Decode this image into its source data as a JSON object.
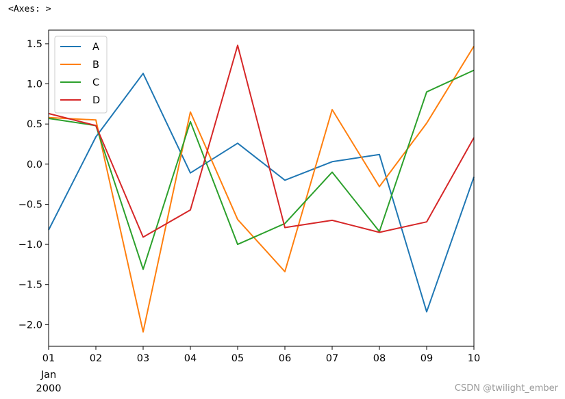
{
  "output_repr": "<Axes: >",
  "watermark": "CSDN @twilight_ember",
  "chart_data": {
    "type": "line",
    "x": [
      "01",
      "02",
      "03",
      "04",
      "05",
      "06",
      "07",
      "08",
      "09",
      "10"
    ],
    "x_sublabels": [
      "Jan",
      "2000"
    ],
    "ylim": [
      -2.27,
      1.67
    ],
    "yticks": [
      -2.0,
      -1.5,
      -1.0,
      -0.5,
      0.0,
      0.5,
      1.0,
      1.5
    ],
    "ytick_labels": [
      "−2.0",
      "−1.5",
      "−1.0",
      "−0.5",
      "0.0",
      "0.5",
      "1.0",
      "1.5"
    ],
    "grid": false,
    "legend_placement": "upper-left",
    "series": [
      {
        "name": "A",
        "color": "#1f77b4",
        "values": [
          -0.82,
          0.34,
          1.13,
          -0.11,
          0.26,
          -0.2,
          0.03,
          0.12,
          -1.84,
          -0.16
        ]
      },
      {
        "name": "B",
        "color": "#ff7f0e",
        "values": [
          0.58,
          0.55,
          -2.09,
          0.65,
          -0.69,
          -1.34,
          0.68,
          -0.28,
          0.51,
          1.47
        ]
      },
      {
        "name": "C",
        "color": "#2ca02c",
        "values": [
          0.57,
          0.48,
          -1.31,
          0.53,
          -1.0,
          -0.74,
          -0.1,
          -0.84,
          0.9,
          1.17
        ]
      },
      {
        "name": "D",
        "color": "#d62728",
        "values": [
          0.63,
          0.48,
          -0.91,
          -0.57,
          1.48,
          -0.79,
          -0.7,
          -0.85,
          -0.72,
          0.33
        ]
      }
    ]
  }
}
